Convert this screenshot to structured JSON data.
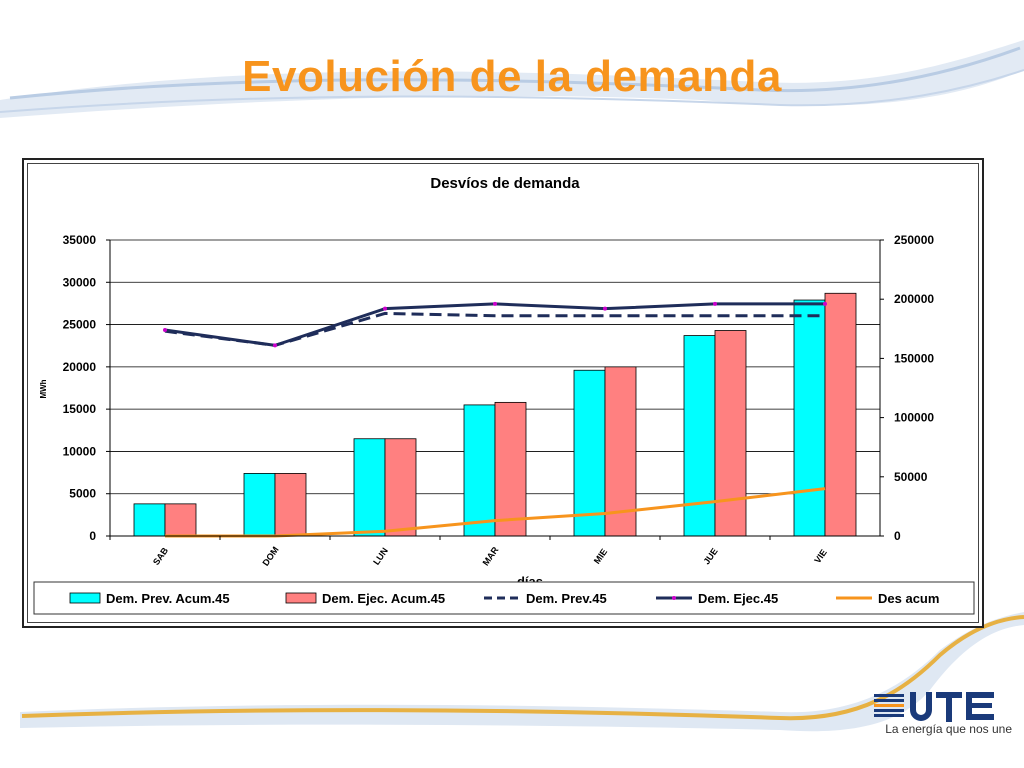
{
  "slide": {
    "title": "Evolución de la demanda",
    "logo_name": "UTE",
    "logo_tagline": "La energía que nos une",
    "colors": {
      "title": "#f7941d",
      "swoosh": "#c9d8ea",
      "swoosh_gold": "#e8a317"
    }
  },
  "chart_data": {
    "type": "bar",
    "title": "Desvíos de demanda",
    "xlabel": "días",
    "ylabel": "MWh",
    "categories": [
      "SAB",
      "DOM",
      "LUN",
      "MAR",
      "MIE",
      "JUE",
      "VIE"
    ],
    "ylim": [
      0,
      35000
    ],
    "y_ticks": [
      0,
      5000,
      10000,
      15000,
      20000,
      25000,
      30000,
      35000
    ],
    "y2lim": [
      0,
      250000
    ],
    "y2_ticks": [
      0,
      50000,
      100000,
      150000,
      200000,
      250000
    ],
    "grid": true,
    "legend_position": "bottom",
    "series": [
      {
        "name": "Dem. Prev. Acum.45",
        "kind": "bar",
        "axis": "left",
        "color": "#00ffff",
        "values": [
          3800,
          7400,
          11500,
          15500,
          19600,
          23700,
          27900
        ]
      },
      {
        "name": "Dem. Ejec. Acum.45",
        "kind": "bar",
        "axis": "left",
        "color": "#ff8080",
        "values": [
          3800,
          7400,
          11500,
          15800,
          20000,
          24300,
          28700
        ]
      },
      {
        "name": "Dem. Prev.45",
        "kind": "line",
        "axis": "right",
        "color": "#1f2d5a",
        "dashed": true,
        "values": [
          173000,
          161000,
          188000,
          186000,
          186000,
          186000,
          186000
        ]
      },
      {
        "name": "Dem. Ejec.45",
        "kind": "line",
        "axis": "right",
        "color": "#1f2d5a",
        "marker_color": "#cc00cc",
        "dashed": false,
        "values": [
          174000,
          161000,
          192000,
          196000,
          192000,
          196000,
          196000
        ]
      },
      {
        "name": "Des acum",
        "kind": "line",
        "axis": "right",
        "color": "#f7941d",
        "dashed": false,
        "values": [
          0,
          0,
          4000,
          13000,
          19000,
          29000,
          40000
        ]
      }
    ]
  }
}
